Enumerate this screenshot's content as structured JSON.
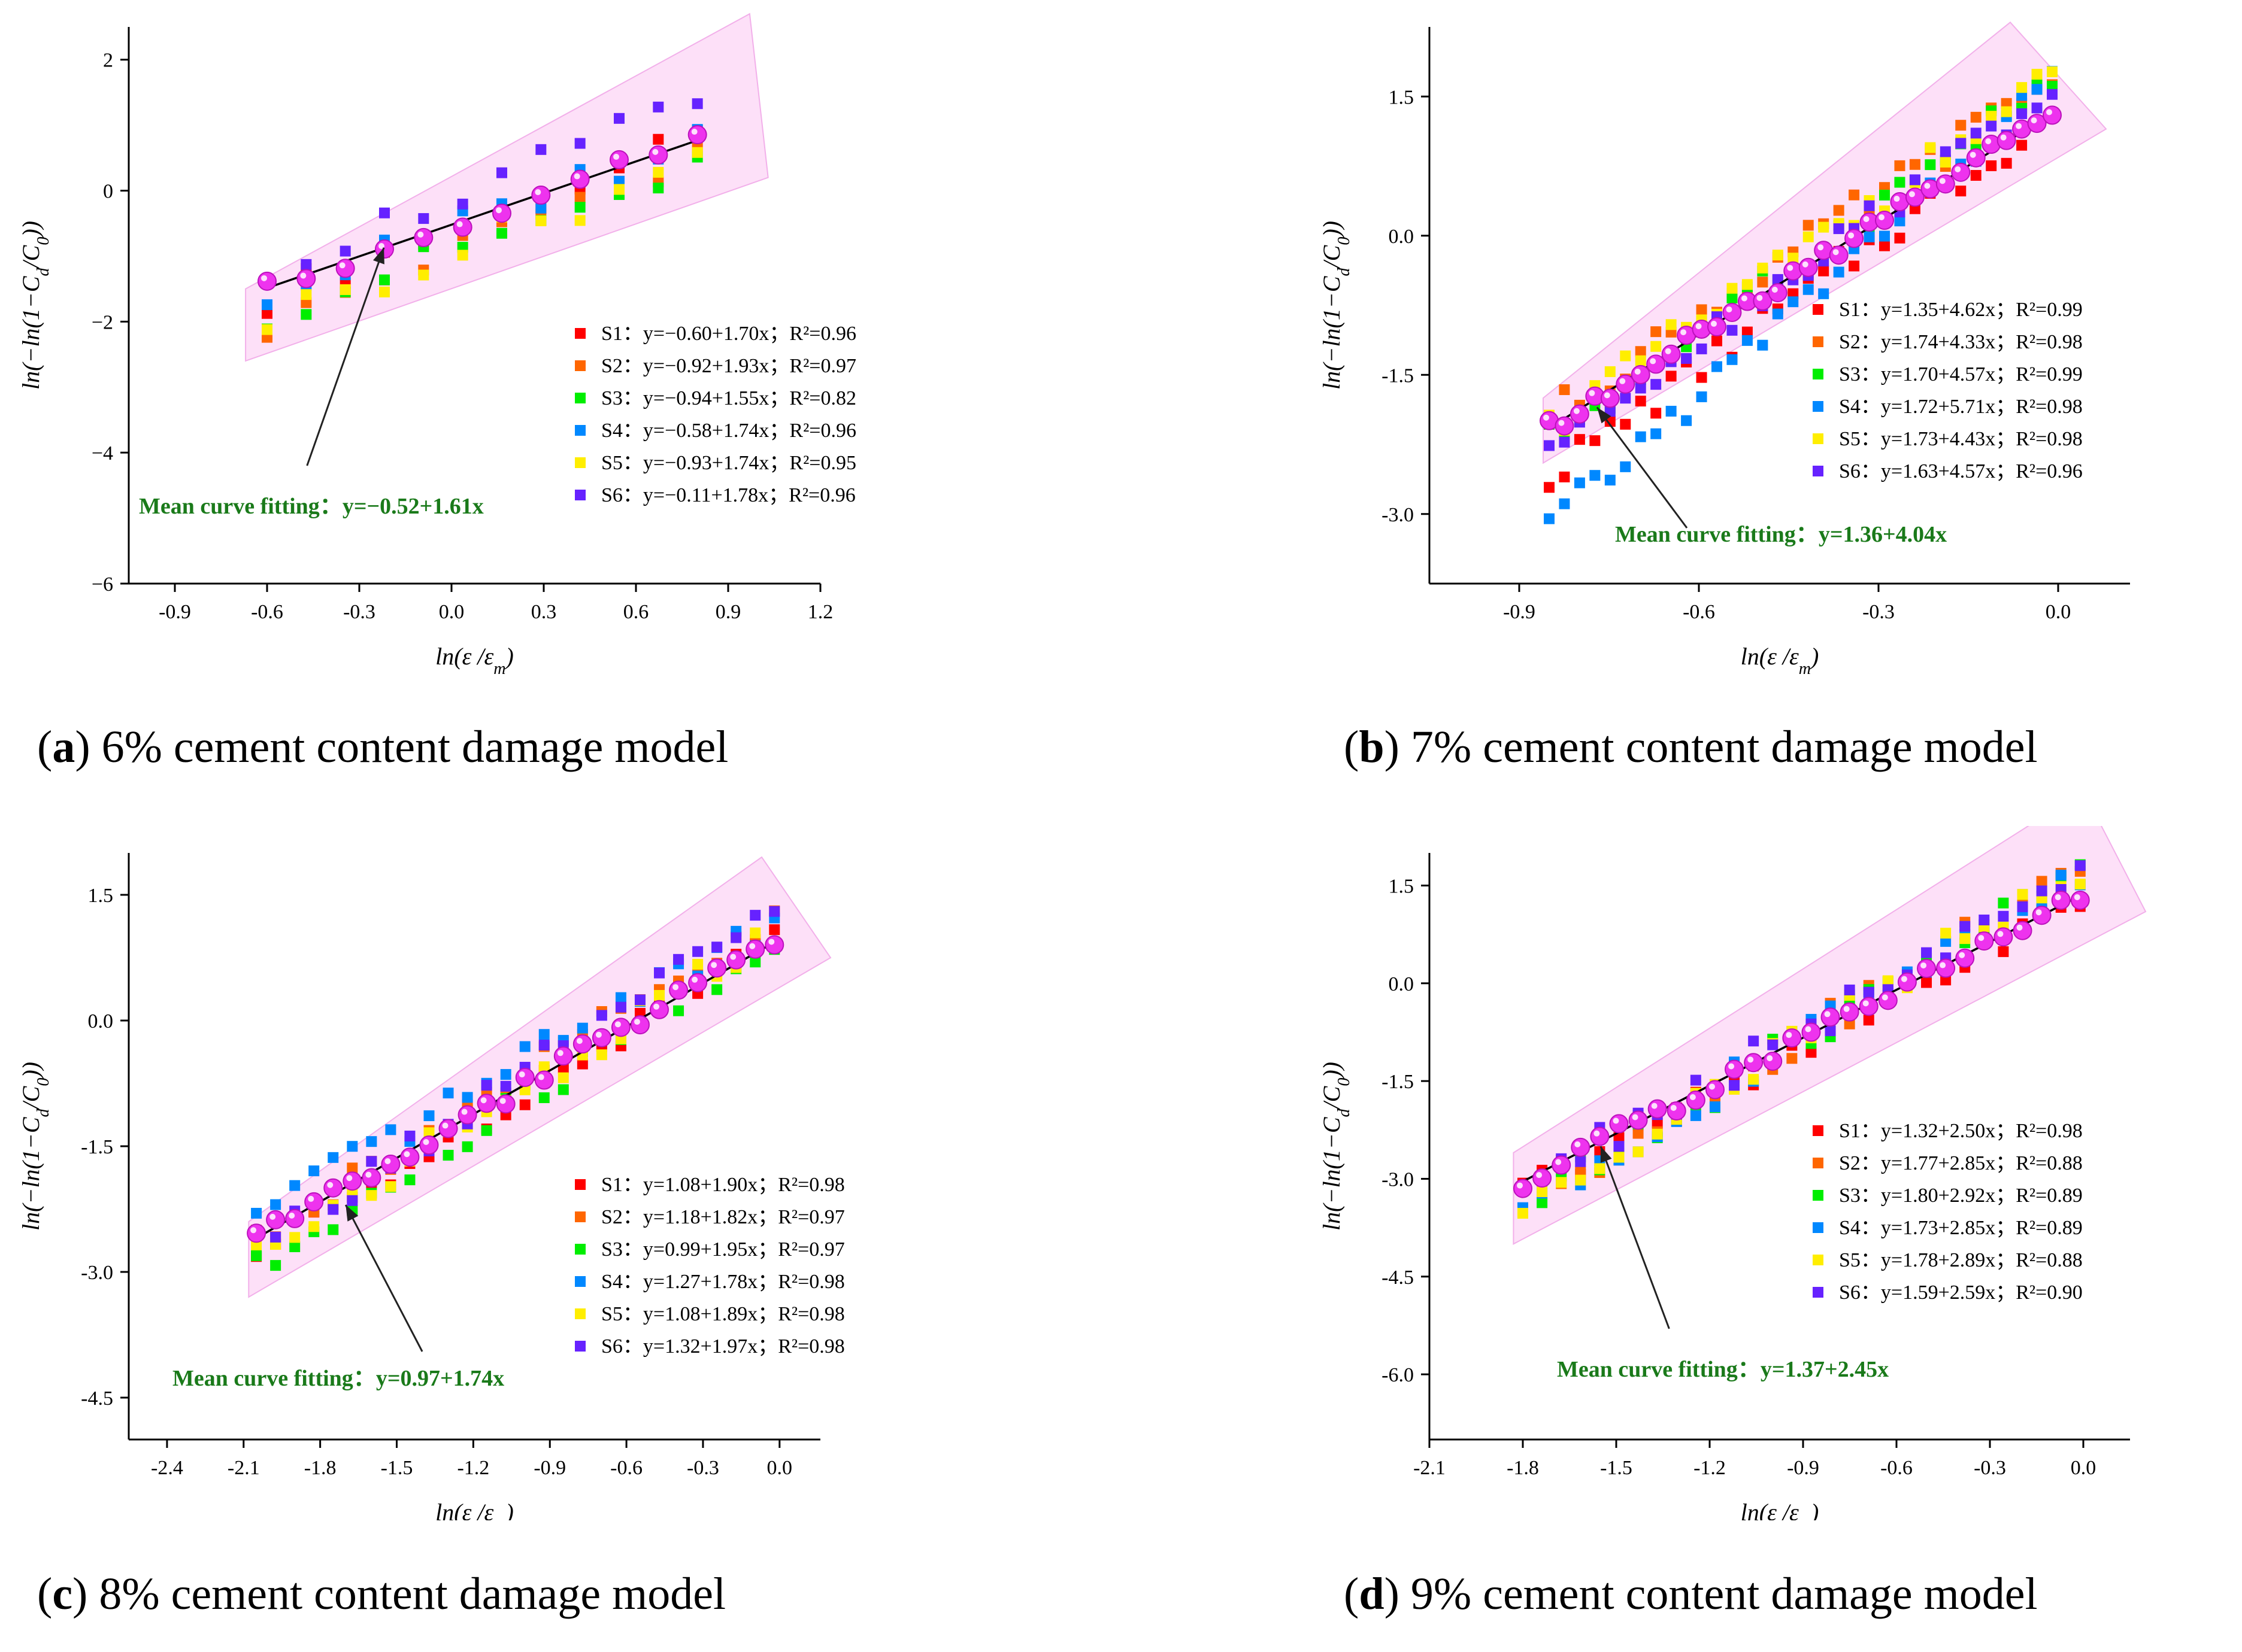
{
  "colors": {
    "S1": "#ff0000",
    "S2": "#ff6600",
    "S3": "#00ee00",
    "S4": "#0088ff",
    "S5": "#ffee00",
    "S6": "#6622ff",
    "mean_marker": "#ee33ee",
    "band": "#fde0f8",
    "band_edge": "#f2b0ea",
    "fit_line": "#000000",
    "mean_text": "#1a7a1a"
  },
  "chart_data": [
    {
      "type": "scatter",
      "panel_label": "a",
      "caption": "6% cement content damage model",
      "xlabel": "ln(ε /ε",
      "xlabel_sub": "m",
      "ylabel": "ln(−ln(1−C",
      "ylabel_sub": "d",
      "ylabel_mid": "/C",
      "ylabel_sub2": "0",
      "ylabel_end": "))",
      "xlim": [
        -1.05,
        1.2
      ],
      "ylim": [
        -6,
        2.5
      ],
      "xticks": [
        -0.9,
        -0.6,
        -0.3,
        0.0,
        0.3,
        0.6,
        0.9,
        1.2
      ],
      "xtick_labels": [
        "-0.9",
        "-0.6",
        "-0.3",
        "0.0",
        "0.3",
        "0.6",
        "0.9",
        "1.2"
      ],
      "yticks": [
        -6,
        -4,
        -2,
        0,
        2
      ],
      "ytick_labels": [
        "−6",
        "−4",
        "−2",
        "0",
        "2"
      ],
      "legend": [
        {
          "series": "S1",
          "label": "S1：y=−0.60+1.70x；R²=0.96",
          "a": -0.6,
          "b": 1.7
        },
        {
          "series": "S2",
          "label": "S2：y=−0.92+1.93x；R²=0.97",
          "a": -0.92,
          "b": 1.93
        },
        {
          "series": "S3",
          "label": "S3：y=−0.94+1.55x；R²=0.82",
          "a": -0.94,
          "b": 1.55
        },
        {
          "series": "S4",
          "label": "S4：y=−0.58+1.74x；R²=0.96",
          "a": -0.58,
          "b": 1.74
        },
        {
          "series": "S5",
          "label": "S5：y=−0.93+1.74x；R²=0.95",
          "a": -0.93,
          "b": 1.74
        },
        {
          "series": "S6",
          "label": "S6：y=−0.11+1.78x；R²=0.96",
          "a": -0.11,
          "b": 1.78
        }
      ],
      "mean_fit": {
        "label_prefix": "Mean curve fitting：",
        "label_eq": "y=−0.52+1.61x",
        "a": -0.52,
        "b": 1.61
      },
      "x_range": [
        -0.6,
        0.8
      ],
      "points": 12,
      "band": [
        [
          -0.67,
          -1.5
        ],
        [
          0.97,
          2.7
        ],
        [
          1.03,
          0.2
        ],
        [
          -0.67,
          -2.6
        ]
      ],
      "arrow_from": [
        -0.47,
        -4.2
      ],
      "arrow_to": [
        -0.22,
        -0.87
      ]
    },
    {
      "type": "scatter",
      "panel_label": "b",
      "caption": "7% cement content damage model",
      "xlabel": "ln(ε /ε",
      "xlabel_sub": "m",
      "ylabel": "ln(−ln(1−C",
      "ylabel_sub": "d",
      "ylabel_mid": "/C",
      "ylabel_sub2": "0",
      "ylabel_end": "))",
      "xlim": [
        -1.05,
        0.12
      ],
      "ylim": [
        -3.75,
        2.25
      ],
      "xticks": [
        -0.9,
        -0.6,
        -0.3,
        0.0
      ],
      "xtick_labels": [
        "-0.9",
        "-0.6",
        "-0.3",
        "0.0"
      ],
      "yticks": [
        -3,
        -1.5,
        0,
        1.5
      ],
      "ytick_labels": [
        "-3.0",
        "-1.5",
        "0.0",
        "1.5"
      ],
      "legend": [
        {
          "series": "S1",
          "label": "S1：y=1.35+4.62x；R²=0.99",
          "a": 1.35,
          "b": 4.62
        },
        {
          "series": "S2",
          "label": "S2：y=1.74+4.33x；R²=0.98",
          "a": 1.74,
          "b": 4.33
        },
        {
          "series": "S3",
          "label": "S3：y=1.70+4.57x；R²=0.99",
          "a": 1.7,
          "b": 4.57
        },
        {
          "series": "S4",
          "label": "S4：y=1.72+5.71x；R²=0.98",
          "a": 1.72,
          "b": 5.71
        },
        {
          "series": "S5",
          "label": "S5：y=1.73+4.43x；R²=0.98",
          "a": 1.73,
          "b": 4.43
        },
        {
          "series": "S6",
          "label": "S6：y=1.63+4.57x；R²=0.96",
          "a": 1.63,
          "b": 4.57
        }
      ],
      "mean_fit": {
        "label_prefix": "Mean curve fitting：",
        "label_eq": "y=1.36+4.04x",
        "a": 1.36,
        "b": 4.04
      },
      "x_range": [
        -0.85,
        -0.01
      ],
      "points": 34,
      "band": [
        [
          -0.86,
          -1.75
        ],
        [
          -0.08,
          2.3
        ],
        [
          0.08,
          1.15
        ],
        [
          -0.86,
          -2.45
        ]
      ],
      "arrow_from": [
        -0.62,
        -3.15
      ],
      "arrow_to": [
        -0.77,
        -1.85
      ]
    },
    {
      "type": "scatter",
      "panel_label": "c",
      "caption": "8% cement content damage model",
      "xlabel": "ln(ε /ε",
      "xlabel_sub": "m",
      "ylabel": "ln(−ln(1−C",
      "ylabel_sub": "d",
      "ylabel_mid": "/C",
      "ylabel_sub2": "0",
      "ylabel_end": "))",
      "xlim": [
        -2.55,
        0.16
      ],
      "ylim": [
        -5.0,
        2.0
      ],
      "xticks": [
        -2.4,
        -2.1,
        -1.8,
        -1.5,
        -1.2,
        -0.9,
        -0.6,
        -0.3,
        0.0
      ],
      "xtick_labels": [
        "-2.4",
        "-2.1",
        "-1.8",
        "-1.5",
        "-1.2",
        "-0.9",
        "-0.6",
        "-0.3",
        "0.0"
      ],
      "yticks": [
        -4.5,
        -3,
        -1.5,
        0,
        1.5
      ],
      "ytick_labels": [
        "-4.5",
        "-3.0",
        "-1.5",
        "0.0",
        "1.5"
      ],
      "legend": [
        {
          "series": "S1",
          "label": "S1：y=1.08+1.90x；R²=0.98",
          "a": 1.08,
          "b": 1.9
        },
        {
          "series": "S2",
          "label": "S2：y=1.18+1.82x；R²=0.97",
          "a": 1.18,
          "b": 1.82
        },
        {
          "series": "S3",
          "label": "S3：y=0.99+1.95x；R²=0.97",
          "a": 0.99,
          "b": 1.95
        },
        {
          "series": "S4",
          "label": "S4：y=1.27+1.78x；R²=0.98",
          "a": 1.27,
          "b": 1.78
        },
        {
          "series": "S5",
          "label": "S5：y=1.08+1.89x；R²=0.98",
          "a": 1.08,
          "b": 1.89
        },
        {
          "series": "S6",
          "label": "S6：y=1.32+1.97x；R²=0.98",
          "a": 1.32,
          "b": 1.97
        }
      ],
      "mean_fit": {
        "label_prefix": "Mean curve fitting：",
        "label_eq": "y=0.97+1.74x",
        "a": 0.97,
        "b": 1.74
      },
      "x_range": [
        -2.05,
        -0.02
      ],
      "points": 28,
      "band": [
        [
          -2.08,
          -2.4
        ],
        [
          -0.07,
          1.95
        ],
        [
          0.2,
          0.75
        ],
        [
          -2.08,
          -3.3
        ]
      ],
      "arrow_from": [
        -1.4,
        -3.95
      ],
      "arrow_to": [
        -1.7,
        -2.2
      ]
    },
    {
      "type": "scatter",
      "panel_label": "d",
      "caption": "9% cement content damage model",
      "xlabel": "ln(ε /ε",
      "xlabel_sub": "m",
      "ylabel": "ln(−ln(1−C",
      "ylabel_sub": "d",
      "ylabel_mid": "/C",
      "ylabel_sub2": "0",
      "ylabel_end": "))",
      "xlim": [
        -2.1,
        0.15
      ],
      "ylim": [
        -7.0,
        2.0
      ],
      "xticks": [
        -2.1,
        -1.8,
        -1.5,
        -1.2,
        -0.9,
        -0.6,
        -0.3,
        0.0
      ],
      "xtick_labels": [
        "-2.1",
        "-1.8",
        "-1.5",
        "-1.2",
        "-0.9",
        "-0.6",
        "-0.3",
        "0.0"
      ],
      "yticks": [
        -6,
        -4.5,
        -3,
        -1.5,
        0,
        1.5
      ],
      "ytick_labels": [
        "-6.0",
        "-4.5",
        "-3.0",
        "-1.5",
        "0.0",
        "1.5"
      ],
      "legend": [
        {
          "series": "S1",
          "label": "S1：y=1.32+2.50x；R²=0.98",
          "a": 1.32,
          "b": 2.5
        },
        {
          "series": "S2",
          "label": "S2：y=1.77+2.85x；R²=0.88",
          "a": 1.77,
          "b": 2.85
        },
        {
          "series": "S3",
          "label": "S3：y=1.80+2.92x；R²=0.89",
          "a": 1.8,
          "b": 2.92
        },
        {
          "series": "S4",
          "label": "S4：y=1.73+2.85x；R²=0.89",
          "a": 1.73,
          "b": 2.85
        },
        {
          "series": "S5",
          "label": "S5：y=1.78+2.89x；R²=0.88",
          "a": 1.78,
          "b": 2.89
        },
        {
          "series": "S6",
          "label": "S6：y=1.59+2.59x；R²=0.90",
          "a": 1.59,
          "b": 2.59
        }
      ],
      "mean_fit": {
        "label_prefix": "Mean curve fitting：",
        "label_eq": "y=1.37+2.45x",
        "a": 1.37,
        "b": 2.45
      },
      "x_range": [
        -1.8,
        -0.01
      ],
      "points": 30,
      "band": [
        [
          -1.83,
          -2.6
        ],
        [
          0.0,
          2.95
        ],
        [
          0.2,
          1.1
        ],
        [
          -1.83,
          -4.0
        ]
      ],
      "arrow_from": [
        -1.33,
        -5.3
      ],
      "arrow_to": [
        -1.55,
        -2.5
      ]
    }
  ]
}
